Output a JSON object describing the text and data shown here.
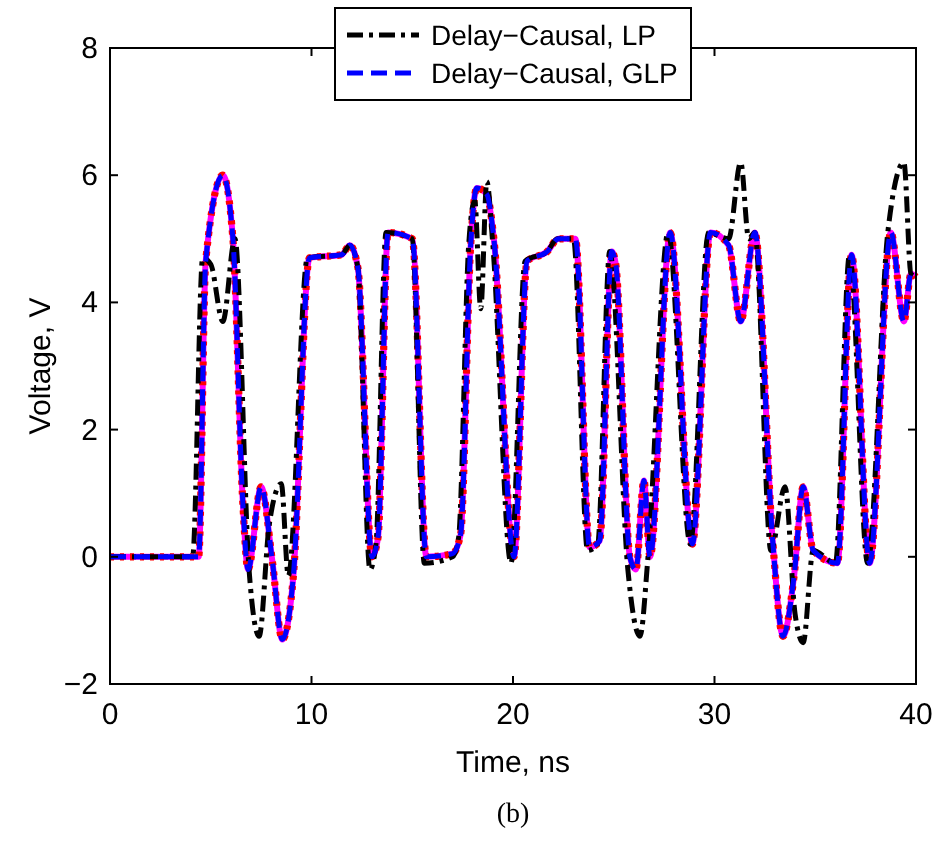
{
  "chart_data": {
    "type": "line",
    "xlabel": "Time, ns",
    "ylabel": "Voltage, V",
    "annotations": [
      "(b)"
    ],
    "xlim": [
      0,
      40
    ],
    "ylim": [
      -2,
      8
    ],
    "xticks": [
      0,
      10,
      20,
      30,
      40
    ],
    "yticks": [
      -2,
      0,
      2,
      4,
      6,
      8
    ],
    "grid": false,
    "legend": "top",
    "marker": "none",
    "x": [
      0,
      4.4,
      4.75,
      5.6,
      6.1,
      6.6,
      6.85,
      7.5,
      8.05,
      8.55,
      9.1,
      9.9,
      11.5,
      11.9,
      12.3,
      13.0,
      13.3,
      13.8,
      15.0,
      15.7,
      17.0,
      17.4,
      17.9,
      18.2,
      18.7,
      19.05,
      20.05,
      20.7,
      21.7,
      22.25,
      23.1,
      23.8,
      24.3,
      24.9,
      25.1,
      25.8,
      26.1,
      26.5,
      26.8,
      27.8,
      28.9,
      29.8,
      30.7,
      31.3,
      32.0,
      32.9,
      33.4,
      33.95,
      34.4,
      34.9,
      36.1,
      36.8,
      37.7,
      38.75,
      39.4,
      39.75,
      40
    ],
    "series": [
      {
        "color": "#ff00ff",
        "line_style": "solid",
        "values": [
          0,
          0,
          4.65,
          6.0,
          5.0,
          0.8,
          -0.2,
          1.1,
          -0.05,
          -1.3,
          -0.3,
          4.7,
          4.75,
          4.9,
          4.55,
          0,
          0.3,
          5.1,
          5.0,
          0,
          0.05,
          0.35,
          4.9,
          5.8,
          5.7,
          5.0,
          0,
          4.65,
          4.8,
          5.0,
          5.0,
          0.15,
          0.25,
          4.8,
          4.6,
          0,
          -0.2,
          1.2,
          0,
          5.1,
          0.2,
          5.1,
          4.9,
          3.7,
          5.1,
          0.2,
          -1.25,
          -0.3,
          1.1,
          0.1,
          -0.1,
          4.75,
          -0.1,
          5.1,
          3.7,
          4.45,
          4.4
        ]
      },
      {
        "color": "#ff0000",
        "line_style": "dotted",
        "values": [
          0,
          0,
          4.65,
          6.0,
          5.0,
          0.8,
          -0.2,
          1.1,
          -0.05,
          -1.3,
          -0.3,
          4.7,
          4.75,
          4.9,
          4.55,
          0,
          0.3,
          5.1,
          5.0,
          0,
          0.05,
          0.35,
          4.9,
          5.8,
          5.7,
          5.0,
          0,
          4.65,
          4.8,
          5.0,
          5.0,
          0.15,
          0.25,
          4.8,
          4.6,
          0,
          -0.2,
          1.2,
          0,
          5.1,
          0.2,
          5.1,
          4.9,
          3.7,
          5.1,
          0.2,
          -1.25,
          -0.3,
          1.1,
          0.1,
          -0.1,
          4.75,
          -0.1,
          5.1,
          3.7,
          4.45,
          4.4
        ]
      },
      {
        "name": "Delay−Causal, LP",
        "color": "#000000",
        "line_style": "dashdot",
        "x": [
          0,
          4.1,
          4.6,
          5.0,
          5.6,
          6.2,
          6.9,
          7.4,
          7.9,
          8.5,
          8.85,
          9.8,
          11.5,
          11.9,
          12.3,
          12.9,
          13.2,
          13.7,
          15.0,
          15.6,
          17.0,
          17.3,
          17.8,
          18.1,
          18.4,
          18.7,
          19.0,
          19.9,
          20.6,
          21.7,
          22.2,
          23.0,
          23.7,
          24.2,
          24.8,
          25.7,
          26.3,
          26.7,
          27.7,
          28.8,
          29.7,
          30.7,
          31.3,
          31.7,
          32.0,
          32.8,
          33.5,
          34.0,
          34.4,
          34.9,
          36.0,
          36.7,
          37.6,
          38.6,
          39.4,
          39.75,
          40
        ],
        "values": [
          0,
          0,
          4.7,
          4.6,
          3.7,
          5.0,
          -0.2,
          -1.25,
          0.5,
          1.15,
          -0.3,
          4.7,
          4.75,
          4.9,
          4.55,
          -0.2,
          0.2,
          5.1,
          5.0,
          -0.1,
          0.0,
          0.3,
          4.9,
          5.6,
          3.9,
          5.9,
          4.9,
          -0.1,
          4.65,
          4.8,
          5.0,
          5.0,
          0.1,
          0.2,
          4.8,
          -0.2,
          -1.25,
          0,
          5.1,
          0.2,
          5.1,
          5.0,
          6.2,
          5.0,
          5.1,
          0.1,
          1.1,
          -0.9,
          -1.35,
          0.1,
          -0.1,
          4.75,
          -0.1,
          5.1,
          6.2,
          4.45,
          4.4
        ]
      },
      {
        "name": "Delay−Causal, GLP",
        "color": "#0000ff",
        "line_style": "dashed",
        "values": [
          0,
          0,
          4.65,
          6.0,
          5.0,
          0.8,
          -0.2,
          1.1,
          -0.05,
          -1.3,
          -0.3,
          4.7,
          4.75,
          4.9,
          4.55,
          0,
          0.3,
          5.1,
          5.0,
          0,
          0.05,
          0.35,
          4.9,
          5.8,
          5.7,
          5.0,
          0,
          4.65,
          4.8,
          5.0,
          5.0,
          0.15,
          0.25,
          4.8,
          4.6,
          0,
          -0.2,
          1.2,
          0,
          5.1,
          0.2,
          5.1,
          4.9,
          3.7,
          5.1,
          0.2,
          -1.25,
          -0.3,
          1.1,
          0.1,
          -0.1,
          4.75,
          -0.1,
          5.1,
          3.7,
          4.45,
          4.4
        ]
      }
    ]
  }
}
